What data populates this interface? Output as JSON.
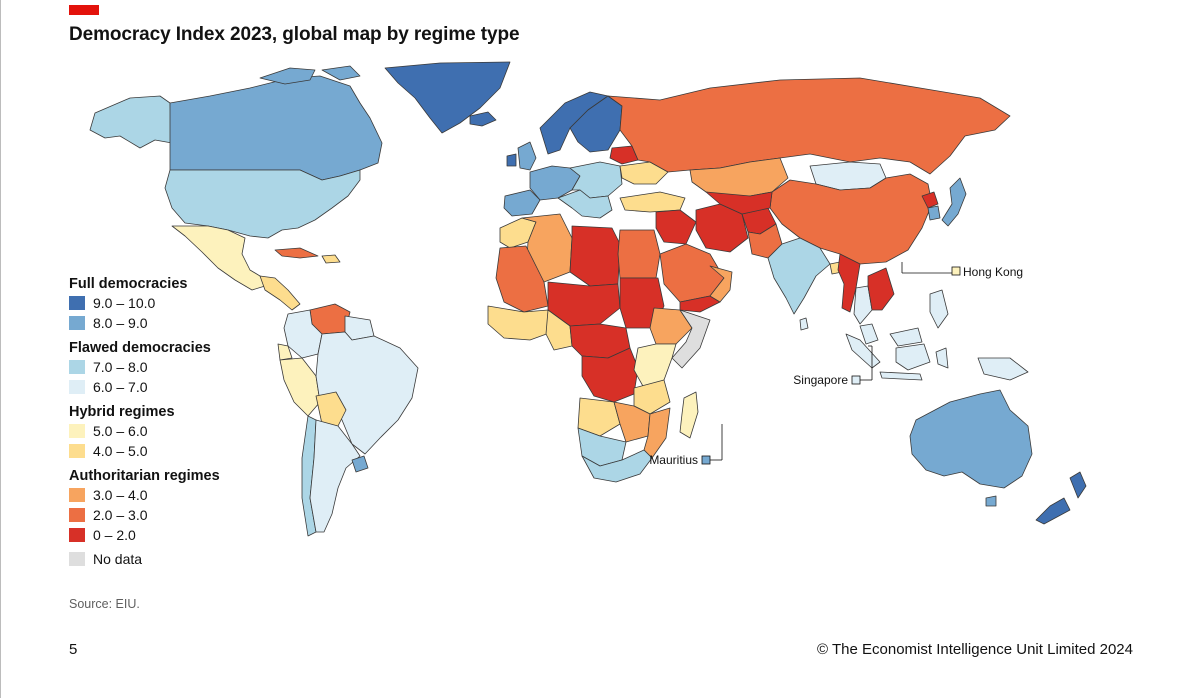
{
  "header": {
    "title": "Democracy Index 2023, global map by regime type"
  },
  "legend": {
    "groups": [
      {
        "title": "Full democracies",
        "items": [
          {
            "label": "9.0 – 10.0",
            "color": "#3f6fb0"
          },
          {
            "label": "8.0 – 9.0",
            "color": "#76a9d1"
          }
        ]
      },
      {
        "title": "Flawed democracies",
        "items": [
          {
            "label": "7.0 – 8.0",
            "color": "#acd6e6"
          },
          {
            "label": "6.0 – 7.0",
            "color": "#dfeef6"
          }
        ]
      },
      {
        "title": "Hybrid regimes",
        "items": [
          {
            "label": "5.0 – 6.0",
            "color": "#fdf2bd"
          },
          {
            "label": "4.0 – 5.0",
            "color": "#fddd8e"
          }
        ]
      },
      {
        "title": "Authoritarian regimes",
        "items": [
          {
            "label": "3.0 – 4.0",
            "color": "#f7a45f"
          },
          {
            "label": "2.0 – 3.0",
            "color": "#ec6f43"
          },
          {
            "label": "0 – 2.0",
            "color": "#d73027"
          }
        ]
      }
    ],
    "no_data": {
      "label": "No data",
      "color": "#dedede"
    }
  },
  "callouts": {
    "hong_kong": "Hong Kong",
    "singapore": "Singapore",
    "mauritius": "Mauritius"
  },
  "footer": {
    "source": "Source: EIU.",
    "page_number": "5",
    "copyright": "© The Economist Intelligence Unit Limited 2024"
  },
  "colors": {
    "brand_red": "#e3120b",
    "border": "#3a3a3a"
  }
}
